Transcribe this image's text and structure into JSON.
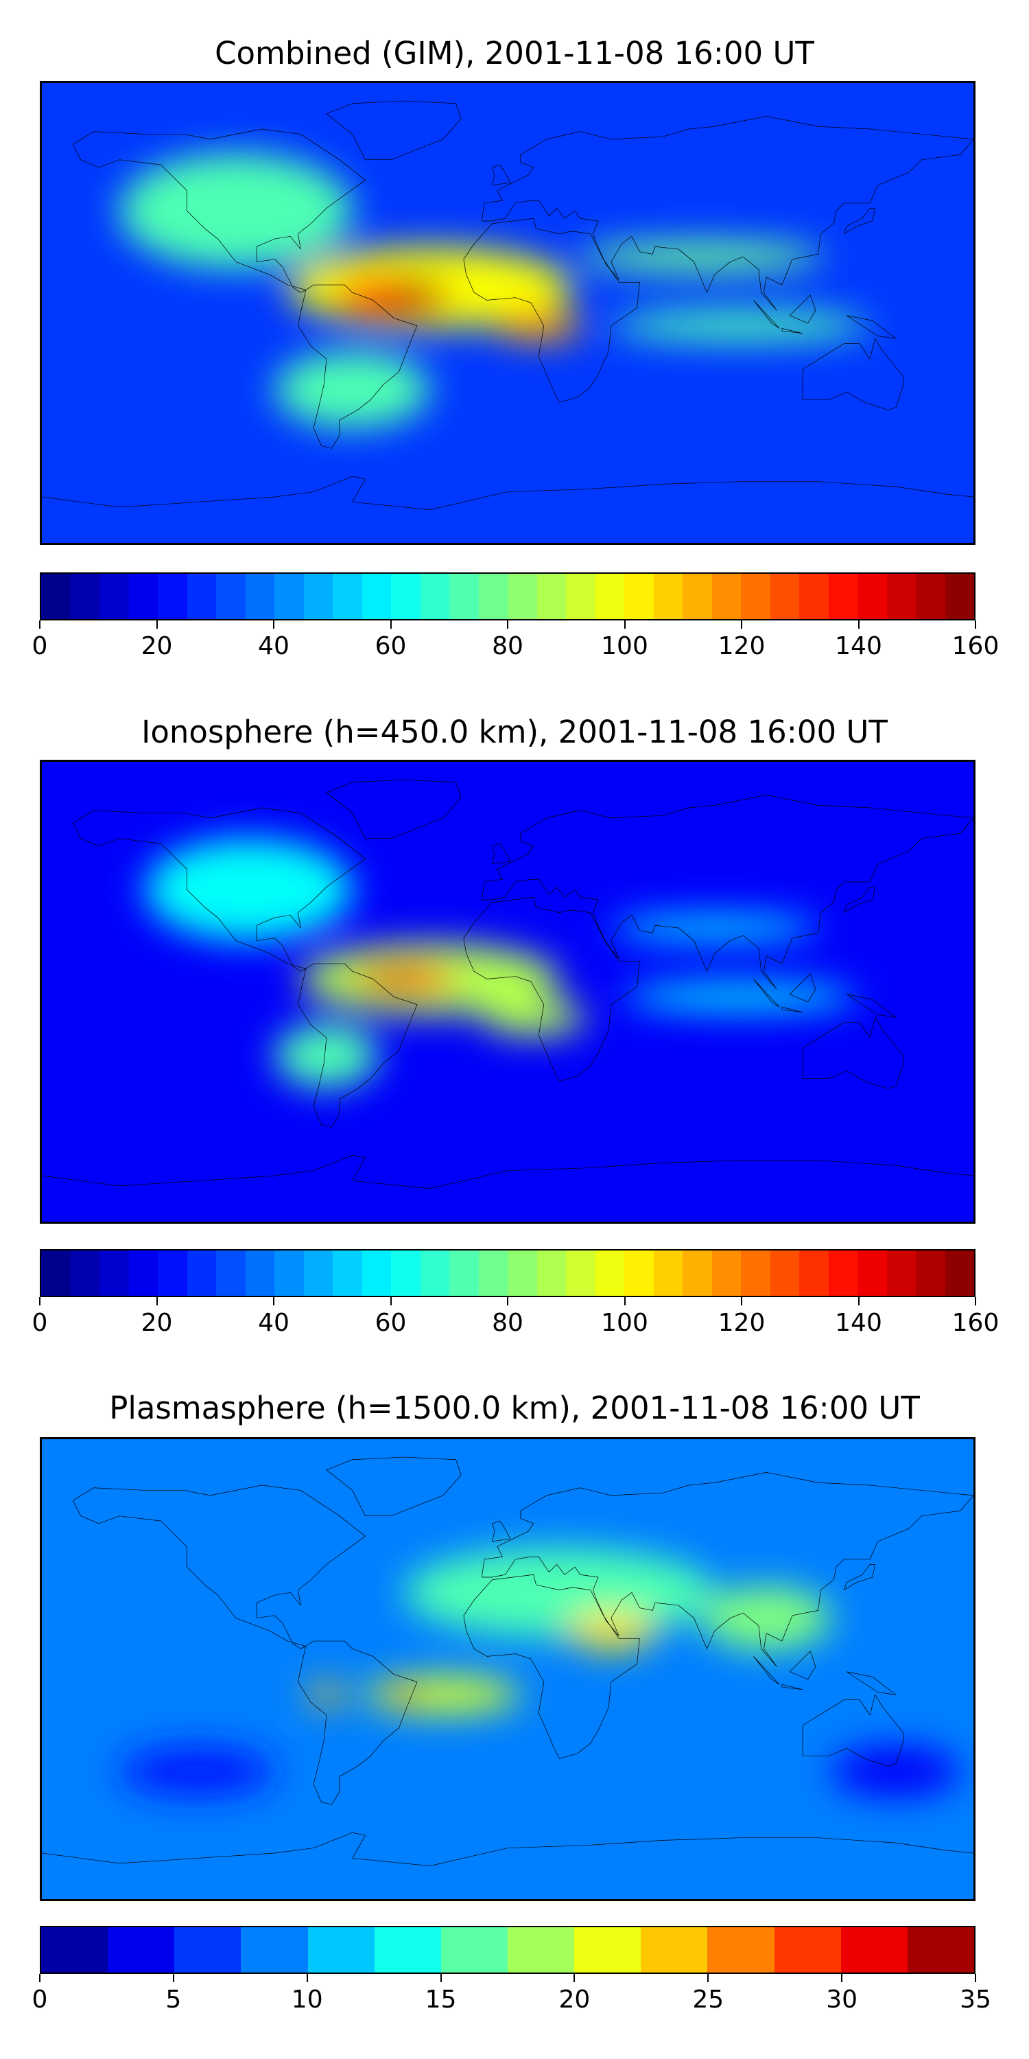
{
  "panels": [
    {
      "title": "Combined (GIM), 2001-11-08 16:00 UT",
      "colorbar": {
        "min": 0,
        "max": 160,
        "levels": 32,
        "ticks": [
          "0",
          "20",
          "40",
          "60",
          "80",
          "100",
          "120",
          "140",
          "160"
        ]
      },
      "field": {
        "background": 0.18,
        "blobs": [
          {
            "lon": -105,
            "lat": 40,
            "value": 0.45,
            "rx": 90,
            "ry": 45
          },
          {
            "lon": -30,
            "lat": 10,
            "value": 0.62,
            "rx": 110,
            "ry": 32
          },
          {
            "lon": -45,
            "lat": 6,
            "value": 0.85,
            "rx": 45,
            "ry": 16
          },
          {
            "lon": -35,
            "lat": 8,
            "value": 0.97,
            "rx": 22,
            "ry": 9
          },
          {
            "lon": 12,
            "lat": -5,
            "value": 0.72,
            "rx": 35,
            "ry": 12
          },
          {
            "lon": 75,
            "lat": 22,
            "value": 0.48,
            "rx": 95,
            "ry": 12
          },
          {
            "lon": 90,
            "lat": -5,
            "value": 0.45,
            "rx": 100,
            "ry": 12
          },
          {
            "lon": -60,
            "lat": -30,
            "value": 0.45,
            "rx": 60,
            "ry": 30
          }
        ]
      }
    },
    {
      "title": "Ionosphere  (h=450.0 km), 2001-11-08 16:00 UT",
      "colorbar": {
        "min": 0,
        "max": 160,
        "levels": 32,
        "ticks": [
          "0",
          "20",
          "40",
          "60",
          "80",
          "100",
          "120",
          "140",
          "160"
        ]
      },
      "field": {
        "background": 0.12,
        "blobs": [
          {
            "lon": -100,
            "lat": 40,
            "value": 0.38,
            "rx": 80,
            "ry": 40
          },
          {
            "lon": -30,
            "lat": 5,
            "value": 0.55,
            "rx": 100,
            "ry": 28
          },
          {
            "lon": -40,
            "lat": 5,
            "value": 0.82,
            "rx": 40,
            "ry": 12
          },
          {
            "lon": -45,
            "lat": 3,
            "value": 0.93,
            "rx": 18,
            "ry": 7
          },
          {
            "lon": 10,
            "lat": -10,
            "value": 0.55,
            "rx": 40,
            "ry": 14
          },
          {
            "lon": 80,
            "lat": 25,
            "value": 0.35,
            "rx": 80,
            "ry": 10
          },
          {
            "lon": 90,
            "lat": -2,
            "value": 0.38,
            "rx": 90,
            "ry": 10
          },
          {
            "lon": -70,
            "lat": -25,
            "value": 0.45,
            "rx": 40,
            "ry": 25
          }
        ]
      }
    },
    {
      "title": "Plasmasphere (h=1500.0 km), 2001-11-08 16:00 UT",
      "colorbar": {
        "min": 0,
        "max": 35,
        "levels": 14,
        "ticks": [
          "0",
          "5",
          "10",
          "15",
          "20",
          "25",
          "30",
          "35"
        ]
      },
      "field": {
        "background": 0.25,
        "blobs": [
          {
            "lon": 20,
            "lat": 30,
            "value": 0.45,
            "rx": 120,
            "ry": 35
          },
          {
            "lon": 40,
            "lat": 15,
            "value": 0.65,
            "rx": 35,
            "ry": 15
          },
          {
            "lon": 100,
            "lat": 20,
            "value": 0.5,
            "rx": 50,
            "ry": 25
          },
          {
            "lon": -25,
            "lat": -10,
            "value": 0.58,
            "rx": 60,
            "ry": 15
          },
          {
            "lon": -40,
            "lat": -10,
            "value": 0.82,
            "rx": 12,
            "ry": 6
          },
          {
            "lon": -70,
            "lat": -10,
            "value": 0.68,
            "rx": 15,
            "ry": 8
          },
          {
            "lon": 150,
            "lat": -40,
            "value": 0.12,
            "rx": 50,
            "ry": 20
          },
          {
            "lon": -120,
            "lat": -40,
            "value": 0.15,
            "rx": 60,
            "ry": 20
          }
        ]
      }
    }
  ]
}
